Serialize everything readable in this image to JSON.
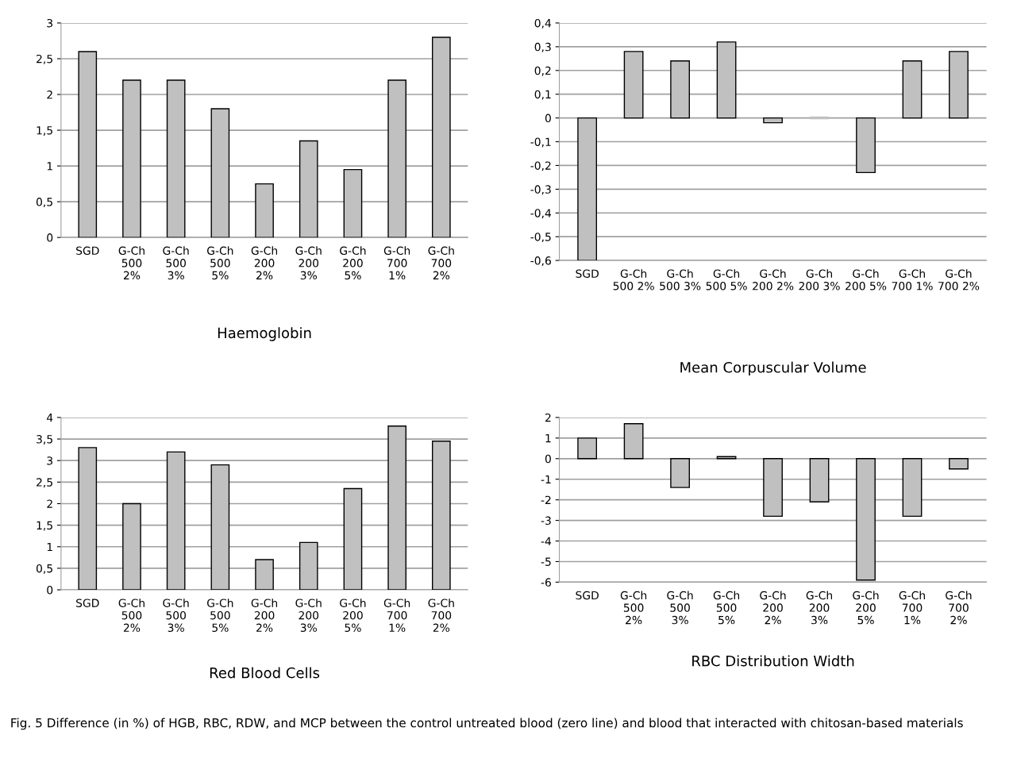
{
  "chart_data": [
    {
      "type": "bar",
      "title": "Haemoglobin",
      "categories": [
        "SGD",
        "G-Ch\n500\n2%",
        "G-Ch\n500\n3%",
        "G-Ch\n500\n5%",
        "G-Ch\n200\n2%",
        "G-Ch\n200\n3%",
        "G-Ch\n200\n5%",
        "G-Ch\n700\n1%",
        "G-Ch\n700\n2%"
      ],
      "values": [
        2.6,
        2.2,
        2.2,
        1.8,
        0.75,
        1.35,
        0.95,
        2.2,
        2.8
      ],
      "color": "#c0c0c0",
      "ylim": [
        0,
        3
      ],
      "yticks": [
        0,
        {
          "value": 0.5,
          "label": "0,5"
        },
        1,
        {
          "value": 1.5,
          "label": "1,5"
        },
        2,
        {
          "value": 2.5,
          "label": "2,5"
        },
        3
      ],
      "grid": "y"
    },
    {
      "type": "bar",
      "title": "Mean Corpuscular Volume",
      "categories": [
        "SGD",
        "G-Ch\n500 2%",
        "G-Ch\n500 3%",
        "G-Ch\n500 5%",
        "G-Ch\n200 2%",
        "G-Ch\n200 3%",
        "G-Ch\n200 5%",
        "G-Ch\n700 1%",
        "G-Ch\n700 2%"
      ],
      "values": [
        -0.6,
        0.28,
        0.24,
        0.32,
        -0.02,
        0.0,
        -0.23,
        0.24,
        0.28
      ],
      "color": "#c0c0c0",
      "ylim": [
        -0.6,
        0.4
      ],
      "yticks": [
        {
          "value": -0.6,
          "label": "-0,6"
        },
        {
          "value": -0.5,
          "label": "-0,5"
        },
        {
          "value": -0.4,
          "label": "-0,4"
        },
        {
          "value": -0.3,
          "label": "-0,3"
        },
        {
          "value": -0.2,
          "label": "-0,2"
        },
        {
          "value": -0.1,
          "label": "-0,1"
        },
        0,
        {
          "value": 0.1,
          "label": "0,1"
        },
        {
          "value": 0.2,
          "label": "0,2"
        },
        {
          "value": 0.3,
          "label": "0,3"
        },
        {
          "value": 0.4,
          "label": "0,4"
        }
      ],
      "grid": "y"
    },
    {
      "type": "bar",
      "title": "Red Blood Cells",
      "categories": [
        "SGD",
        "G-Ch\n500\n2%",
        "G-Ch\n500\n3%",
        "G-Ch\n500\n5%",
        "G-Ch\n200\n2%",
        "G-Ch\n200\n3%",
        "G-Ch\n200\n5%",
        "G-Ch\n700\n1%",
        "G-Ch\n700\n2%"
      ],
      "values": [
        3.3,
        2.0,
        3.2,
        2.9,
        0.7,
        1.1,
        2.35,
        3.8,
        3.45
      ],
      "color": "#c0c0c0",
      "ylim": [
        0,
        4
      ],
      "yticks": [
        0,
        {
          "value": 0.5,
          "label": "0,5"
        },
        1,
        {
          "value": 1.5,
          "label": "1,5"
        },
        2,
        {
          "value": 2.5,
          "label": "2,5"
        },
        3,
        {
          "value": 3.5,
          "label": "3,5"
        },
        4
      ],
      "grid": "y"
    },
    {
      "type": "bar",
      "title": "RBC Distribution Width",
      "categories": [
        "SGD",
        "G-Ch\n500\n2%",
        "G-Ch\n500\n3%",
        "G-Ch\n500\n5%",
        "G-Ch\n200\n2%",
        "G-Ch\n200\n3%",
        "G-Ch\n200\n5%",
        "G-Ch\n700\n1%",
        "G-Ch\n700\n2%"
      ],
      "values": [
        1.0,
        1.7,
        -1.4,
        0.1,
        -2.8,
        -2.1,
        -5.9,
        -2.8,
        -0.5
      ],
      "color": "#c0c0c0",
      "ylim": [
        -6,
        2
      ],
      "yticks": [
        -6,
        -5,
        -4,
        -3,
        -2,
        -1,
        0,
        1,
        2
      ],
      "grid": "y",
      "annotations": [
        "Fig. 5 Difference (in %) of HGB, RBC, RDW, and MCP between the control untreated blood (zero line) and blood that interacted with chitosan-based materials"
      ]
    }
  ]
}
